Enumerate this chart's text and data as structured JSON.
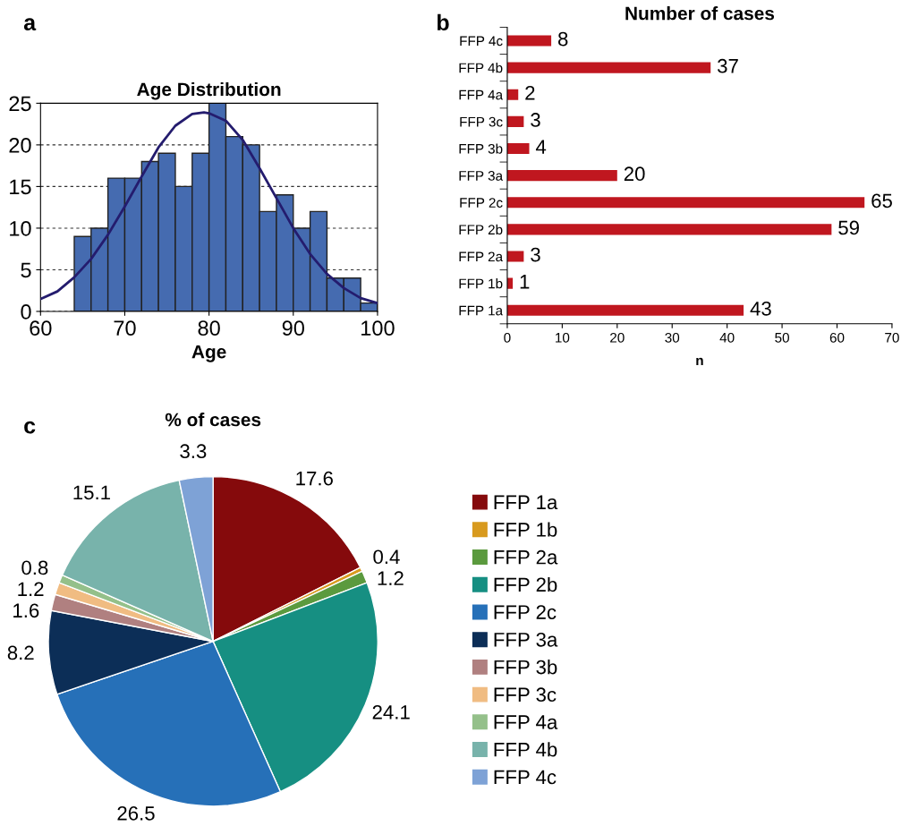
{
  "chart_data": [
    {
      "type": "histogram",
      "title": "Age Distribution",
      "xlabel": "Age",
      "annotations": [
        "a"
      ],
      "bins": [
        64,
        66,
        68,
        70,
        72,
        74,
        76,
        78,
        80,
        82,
        84,
        86,
        88,
        90,
        92,
        94,
        96,
        98,
        100
      ],
      "series": [
        {
          "type": "histogram",
          "color": "#456bb0",
          "values": [
            9,
            10,
            16,
            16,
            18,
            19,
            15,
            19,
            25,
            21,
            20,
            12,
            14,
            10,
            12,
            4,
            4,
            1
          ]
        },
        {
          "type": "line",
          "color": "#241c6e",
          "x": [
            60,
            62,
            64,
            66,
            68,
            70,
            72,
            74,
            76,
            78,
            79.4,
            80,
            82,
            84,
            86,
            88,
            90,
            92,
            94,
            96,
            98,
            100
          ],
          "values": [
            1.5,
            2.4,
            4.1,
            6.3,
            9.2,
            12.6,
            16.2,
            19.7,
            22.3,
            23.7,
            23.9,
            23.8,
            22.9,
            20.6,
            17.2,
            13.6,
            10.0,
            6.9,
            4.5,
            2.8,
            1.6,
            1.0
          ]
        }
      ],
      "xlim": [
        60,
        100
      ],
      "xticks": [
        60,
        70,
        80,
        90,
        100
      ],
      "ylim": [
        0,
        25
      ],
      "yticks": [
        0,
        5,
        10,
        15,
        20,
        25
      ],
      "grid": "y",
      "line_style": "solid"
    },
    {
      "type": "bar",
      "orientation": "horizontal",
      "title": "Number of cases",
      "xlabel": "n",
      "annotations": [
        "b"
      ],
      "categories": [
        "FFP 4c",
        "FFP 4b",
        "FFP 4a",
        "FFP 3c",
        "FFP 3b",
        "FFP 3a",
        "FFP 2c",
        "FFP 2b",
        "FFP 2a",
        "FFP 1b",
        "FFP 1a"
      ],
      "values": [
        8,
        37,
        2,
        3,
        4,
        20,
        65,
        59,
        3,
        1,
        43
      ],
      "color": "#c0171f",
      "xlim": [
        0,
        70
      ],
      "xticks": [
        0,
        10,
        20,
        30,
        40,
        50,
        60,
        70
      ],
      "data_labels": true,
      "grid": false
    },
    {
      "type": "pie",
      "title": "% of cases",
      "annotations": [
        "c"
      ],
      "categories": [
        "FFP 1a",
        "FFP 1b",
        "FFP 2a",
        "FFP 2b",
        "FFP 2c",
        "FFP 3a",
        "FFP 3b",
        "FFP 3c",
        "FFP 4a",
        "FFP 4b",
        "FFP 4c"
      ],
      "values": [
        17.6,
        0.4,
        1.2,
        24.1,
        26.5,
        8.2,
        1.6,
        1.2,
        0.8,
        15.1,
        3.3
      ],
      "colors": [
        "#850a0c",
        "#d89a1e",
        "#5b9a3e",
        "#168f82",
        "#2670b8",
        "#0c2e57",
        "#b08080",
        "#f0bc82",
        "#94c08a",
        "#78b3ab",
        "#7ea2d6"
      ],
      "data_labels": true,
      "legend": "right"
    }
  ]
}
